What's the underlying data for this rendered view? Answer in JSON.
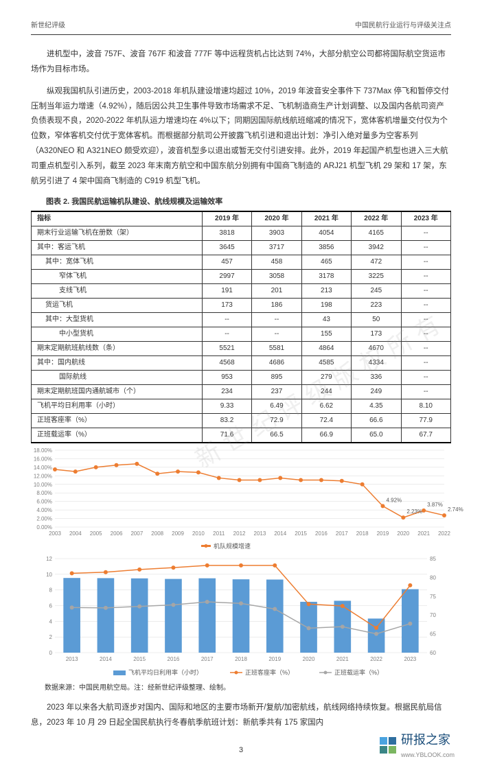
{
  "header": {
    "left": "新世纪评级",
    "right": "中国民航行业运行与评级关注点"
  },
  "para1": "进机型中，波音 757F、波音 767F 和波音 777F 等中远程货机占比达到 74%，大部分航空公司都将国际航空货运市场作为目标市场。",
  "para2": "纵观我国机队引进历史，2003-2018 年机队建设增速均超过 10%，2019 年波音安全事件下 737Max 停飞和暂停交付压制当年运力增速（4.92%），随后因公共卫生事件导致市场需求不足、飞机制造商生产计划调整、以及国内各航司资产负债表现不良，2020-2022 年机队运力增速均在 4%以下；同期因国际航线航班缩减的情况下，宽体客机增量交付仅为个位数，窄体客机交付优于宽体客机。而根据部分航司公开披露飞机引进和退出计划：净引入绝对量多为空客系列（A320NEO 和 A321NEO 颇受欢迎），波音机型多以退出或暂无交付引进安排。此外，2019 年起国产机型也进入三大航司重点机型引入系列，截至 2023 年末南方航空和中国东航分别拥有中国商飞制造的 ARJ21 机型飞机 29 架和 17 架，东航另引进了 4 架中国商飞制造的 C919 机型飞机。",
  "table": {
    "caption": "图表 2.  我国民航运输机队建设、航线规模及运输效率",
    "cols": [
      "指标",
      "2019 年",
      "2020 年",
      "2021 年",
      "2022 年",
      "2023 年"
    ],
    "rows": [
      {
        "label": "期末行业运输飞机在册数（架）",
        "v": [
          "3818",
          "3903",
          "4054",
          "4165",
          "--"
        ],
        "indent": 0
      },
      {
        "label": "其中：客运飞机",
        "v": [
          "3645",
          "3717",
          "3856",
          "3942",
          "--"
        ],
        "indent": 0
      },
      {
        "label": "其中：宽体飞机",
        "v": [
          "457",
          "458",
          "465",
          "472",
          "--"
        ],
        "indent": 1
      },
      {
        "label": "窄体飞机",
        "v": [
          "2997",
          "3058",
          "3178",
          "3225",
          "--"
        ],
        "indent": 2
      },
      {
        "label": "支线飞机",
        "v": [
          "191",
          "201",
          "213",
          "245",
          "--"
        ],
        "indent": 2
      },
      {
        "label": "货运飞机",
        "v": [
          "173",
          "186",
          "198",
          "223",
          "--"
        ],
        "indent": 1
      },
      {
        "label": "其中：大型货机",
        "v": [
          "--",
          "--",
          "43",
          "50",
          "--"
        ],
        "indent": 1
      },
      {
        "label": "中小型货机",
        "v": [
          "--",
          "--",
          "155",
          "173",
          "--"
        ],
        "indent": 2
      },
      {
        "label": "期末定期航班航线数（条）",
        "v": [
          "5521",
          "5581",
          "4864",
          "4670",
          "--"
        ],
        "indent": 0
      },
      {
        "label": "其中：国内航线",
        "v": [
          "4568",
          "4686",
          "4585",
          "4334",
          "--"
        ],
        "indent": 0
      },
      {
        "label": "国际航线",
        "v": [
          "953",
          "895",
          "279",
          "336",
          "--"
        ],
        "indent": 2
      },
      {
        "label": "期末定期航班国内通航城市（个）",
        "v": [
          "234",
          "237",
          "244",
          "249",
          "--"
        ],
        "indent": 0
      },
      {
        "label": "飞机平均日利用率（小时）",
        "v": [
          "9.33",
          "6.49",
          "6.62",
          "4.35",
          "8.10"
        ],
        "indent": 0
      },
      {
        "label": "正班客座率（%）",
        "v": [
          "83.2",
          "72.9",
          "72.4",
          "66.6",
          "77.9"
        ],
        "indent": 0
      },
      {
        "label": "正班载运率（%）",
        "v": [
          "71.6",
          "66.5",
          "66.9",
          "65.0",
          "67.7"
        ],
        "indent": 0
      }
    ]
  },
  "chart1": {
    "type": "line",
    "years": [
      "2003",
      "2004",
      "2005",
      "2006",
      "2007",
      "2008",
      "2009",
      "2010",
      "2011",
      "2012",
      "2013",
      "2014",
      "2015",
      "2016",
      "2017",
      "2018",
      "2019",
      "2020",
      "2021",
      "2022"
    ],
    "values": [
      13.5,
      13.0,
      14.0,
      14.5,
      14.8,
      12.5,
      13.0,
      12.8,
      11.5,
      11.0,
      11.0,
      11.5,
      11.0,
      11.0,
      10.8,
      10.0,
      4.92,
      2.23,
      3.87,
      2.74
    ],
    "ylim": [
      0,
      18
    ],
    "ytick_step": 2,
    "line_color": "#ed7d31",
    "marker_color": "#ed7d31",
    "grid_color": "#d9d9d9",
    "background": "#ffffff",
    "label_color": "#808080",
    "label_fontsize": 8,
    "legend": "机队规模增速",
    "annotations": [
      {
        "x": "2019",
        "y": 4.92,
        "text": "4.92%"
      },
      {
        "x": "2020",
        "y": 2.23,
        "text": "2.23%"
      },
      {
        "x": "2021",
        "y": 3.87,
        "text": "3.87%"
      },
      {
        "x": "2022",
        "y": 2.74,
        "text": "2.74%"
      }
    ]
  },
  "chart2": {
    "type": "bar+line",
    "years": [
      "2013",
      "2014",
      "2015",
      "2016",
      "2017",
      "2018",
      "2019",
      "2020",
      "2021",
      "2022",
      "2023"
    ],
    "bars": [
      9.53,
      9.51,
      9.48,
      9.41,
      9.49,
      9.36,
      9.33,
      6.49,
      6.62,
      4.35,
      8.1
    ],
    "line_orange": [
      81.1,
      81.4,
      82.1,
      82.6,
      83.2,
      83.2,
      83.2,
      72.9,
      72.4,
      66.6,
      77.9
    ],
    "line_gray": [
      72.0,
      71.9,
      72.3,
      72.7,
      73.5,
      73.1,
      71.6,
      66.5,
      66.9,
      65.0,
      67.7
    ],
    "ylim_left": [
      0,
      12
    ],
    "ytick_left": 2,
    "ylim_right": [
      60,
      85
    ],
    "ytick_right": 5,
    "bar_color": "#5b9bd5",
    "line_orange_color": "#ed7d31",
    "line_gray_color": "#a6a6a6",
    "grid_color": "#d9d9d9",
    "legend": [
      "飞机平均日利用率（小时）",
      "正班客座率（%）",
      "正班载运率（%）"
    ]
  },
  "data_source": "数据来源：中国民用航空局。注：经新世纪评级整理、绘制。",
  "para3": "2023 年以来各大航司逐步对国内、国际和地区的主要市场新开/复航/加密航线，航线网络持续恢复。根据民航局信息，2023 年 10 月 29 日起全国民航执行冬春航季航班计划：新航季共有 175 家国内",
  "page_num": "3",
  "footer": {
    "brand": "研报之家",
    "sub": "www.YBLOOK.com",
    "colors": [
      "#4aa3df",
      "#2f6f9f",
      "#3b8686",
      "#7bb661"
    ]
  },
  "watermark": "新世纪评级版权所有"
}
